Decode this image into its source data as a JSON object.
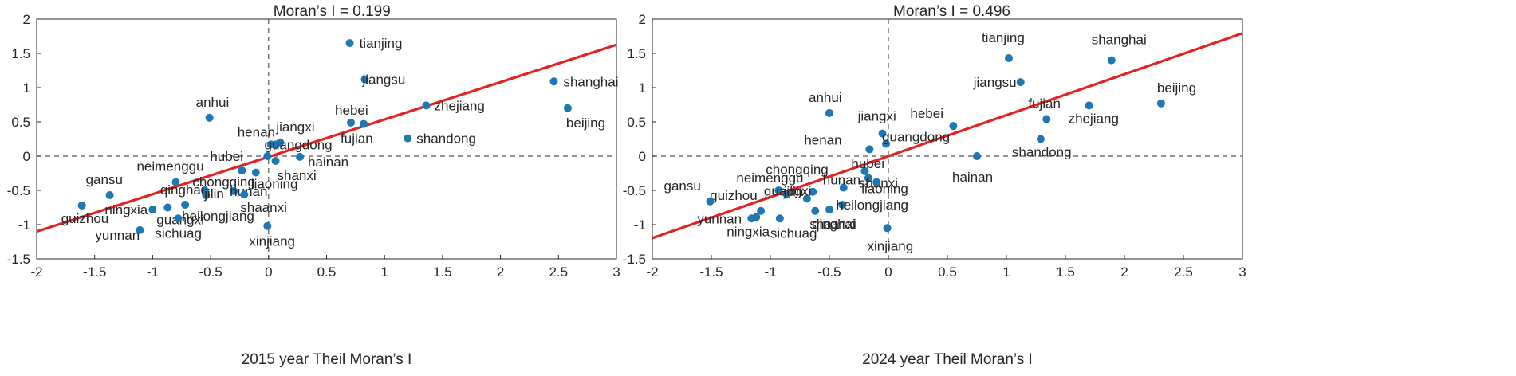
{
  "chart_data": [
    {
      "type": "scatter",
      "title": "Moran’s I = 0.199",
      "xlabel": "2015 year Theil Moran’s I",
      "ylabel": "",
      "xlim": [
        -2,
        3
      ],
      "ylim": [
        -1.5,
        2
      ],
      "xticks": [
        "-2",
        "-1.5",
        "-1",
        "-0.5",
        "0",
        "0.5",
        "1",
        "1.5",
        "2",
        "2.5",
        "3"
      ],
      "yticks": [
        "-1.5",
        "-1",
        "-0.5",
        "0",
        "0.5",
        "1",
        "1.5",
        "2"
      ],
      "grid": false,
      "point_color": "#1f77b4",
      "line_color": "#e32222",
      "regression": {
        "slope": 0.545,
        "intercept": -0.01
      },
      "points": [
        {
          "label": "tianjing",
          "x": 0.7,
          "y": 1.65
        },
        {
          "label": "jiangsu",
          "x": 0.83,
          "y": 1.12
        },
        {
          "label": "shanghai",
          "x": 2.46,
          "y": 1.09
        },
        {
          "label": "beijing",
          "x": 2.58,
          "y": 0.7
        },
        {
          "label": "zhejiang",
          "x": 1.36,
          "y": 0.74
        },
        {
          "label": "hebei",
          "x": 0.71,
          "y": 0.49
        },
        {
          "label": "fujian",
          "x": 0.82,
          "y": 0.47
        },
        {
          "label": "shandong",
          "x": 1.2,
          "y": 0.26
        },
        {
          "label": "anhui",
          "x": -0.51,
          "y": 0.56
        },
        {
          "label": "henan",
          "x": 0.02,
          "y": 0.17
        },
        {
          "label": "jiangxi",
          "x": 0.1,
          "y": 0.2
        },
        {
          "label": "guangdong",
          "x": 0.06,
          "y": 0.17
        },
        {
          "label": "hainan",
          "x": 0.27,
          "y": -0.01
        },
        {
          "label": "hubei",
          "x": -0.01,
          "y": 0.0
        },
        {
          "label": "shanxi",
          "x": 0.06,
          "y": -0.07
        },
        {
          "label": "neimenggu",
          "x": -0.8,
          "y": -0.38
        },
        {
          "label": "chongqing",
          "x": -0.23,
          "y": -0.21
        },
        {
          "label": "liaoning",
          "x": -0.11,
          "y": -0.24
        },
        {
          "label": "qinghai",
          "x": -0.55,
          "y": -0.5
        },
        {
          "label": "jilin",
          "x": -0.54,
          "y": -0.57
        },
        {
          "label": "hunan",
          "x": -0.3,
          "y": -0.51
        },
        {
          "label": "shaanxi",
          "x": -0.21,
          "y": -0.56
        },
        {
          "label": "gansu",
          "x": -1.37,
          "y": -0.57
        },
        {
          "label": "guizhou",
          "x": -1.61,
          "y": -0.72
        },
        {
          "label": "ningxia",
          "x": -1.0,
          "y": -0.78
        },
        {
          "label": "guangxi",
          "x": -0.87,
          "y": -0.75
        },
        {
          "label": "heilongjiang",
          "x": -0.72,
          "y": -0.71
        },
        {
          "label": "sichuag",
          "x": -0.78,
          "y": -0.91
        },
        {
          "label": "yunnan",
          "x": -1.11,
          "y": -1.08
        },
        {
          "label": "xinjiang",
          "x": -0.01,
          "y": -1.02
        }
      ]
    },
    {
      "type": "scatter",
      "title": "Moran’s I = 0.496",
      "xlabel": "2024 year Theil Moran’s I",
      "ylabel": "",
      "xlim": [
        -2,
        3
      ],
      "ylim": [
        -1.5,
        2
      ],
      "xticks": [
        "-2",
        "-1.5",
        "-1",
        "-0.5",
        "0",
        "0.5",
        "1",
        "1.5",
        "2",
        "2.5",
        "3"
      ],
      "yticks": [
        "-1.5",
        "-1",
        "-0.5",
        "0",
        "0.5",
        "1",
        "1.5",
        "2"
      ],
      "grid": false,
      "point_color": "#1f77b4",
      "line_color": "#e32222",
      "regression": {
        "slope": 0.598,
        "intercept": 0.0
      },
      "points": [
        {
          "label": "tianjing",
          "x": 1.02,
          "y": 1.43
        },
        {
          "label": "shanghai",
          "x": 1.89,
          "y": 1.4
        },
        {
          "label": "jiangsu",
          "x": 1.12,
          "y": 1.08
        },
        {
          "label": "beijing",
          "x": 2.31,
          "y": 0.77
        },
        {
          "label": "zhejiang",
          "x": 1.7,
          "y": 0.74
        },
        {
          "label": "fujian",
          "x": 1.34,
          "y": 0.54
        },
        {
          "label": "hebei",
          "x": 0.55,
          "y": 0.44
        },
        {
          "label": "shandong",
          "x": 1.29,
          "y": 0.25
        },
        {
          "label": "hainan",
          "x": 0.75,
          "y": 0.0
        },
        {
          "label": "anhui",
          "x": -0.5,
          "y": 0.63
        },
        {
          "label": "jiangxi",
          "x": -0.05,
          "y": 0.33
        },
        {
          "label": "guangdong",
          "x": -0.02,
          "y": 0.18
        },
        {
          "label": "henan",
          "x": -0.16,
          "y": 0.1
        },
        {
          "label": "hubei",
          "x": -0.2,
          "y": -0.22
        },
        {
          "label": "shanxi",
          "x": -0.17,
          "y": -0.32
        },
        {
          "label": "liaoning",
          "x": -0.1,
          "y": -0.38
        },
        {
          "label": "chongqing",
          "x": -0.64,
          "y": -0.52
        },
        {
          "label": "neimenggu",
          "x": -0.93,
          "y": -0.5
        },
        {
          "label": "hunan",
          "x": -0.38,
          "y": -0.46
        },
        {
          "label": "guizhou",
          "x": -1.08,
          "y": -0.8
        },
        {
          "label": "jilin",
          "x": -0.86,
          "y": -0.56
        },
        {
          "label": "heilongjiang",
          "x": -0.39,
          "y": -0.71
        },
        {
          "label": "gansu",
          "x": -1.51,
          "y": -0.66
        },
        {
          "label": "yunnan",
          "x": -1.16,
          "y": -0.91
        },
        {
          "label": "guangxi",
          "x": -0.69,
          "y": -0.62
        },
        {
          "label": "ningxia",
          "x": -1.12,
          "y": -0.89
        },
        {
          "label": "sichuag",
          "x": -0.92,
          "y": -0.91
        },
        {
          "label": "qinghai",
          "x": -0.5,
          "y": -0.78
        },
        {
          "label": "shaanxi",
          "x": -0.62,
          "y": -0.8
        },
        {
          "label": "xinjiang",
          "x": -0.01,
          "y": -1.05
        }
      ]
    }
  ]
}
